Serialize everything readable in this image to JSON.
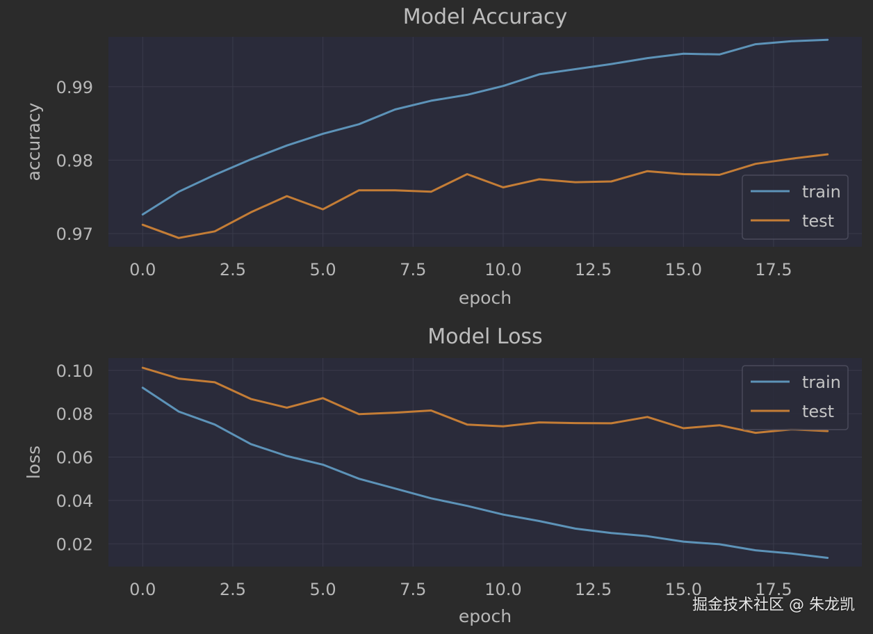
{
  "colors": {
    "background": "#2b2b2b",
    "plot_area": "#2a2b3a",
    "grid": "#3a3b4b",
    "train": "#5d93b8",
    "test": "#c47d36",
    "text": "#b8b8b8"
  },
  "watermark": "掘金技术社区 @ 朱龙凯",
  "chart_data": [
    {
      "type": "line",
      "title": "Model Accuracy",
      "xlabel": "epoch",
      "ylabel": "accuracy",
      "xlim": [
        -0.95,
        19.95
      ],
      "ylim": [
        0.9682,
        0.9968
      ],
      "xticks": [
        0.0,
        2.5,
        5.0,
        7.5,
        10.0,
        12.5,
        15.0,
        17.5
      ],
      "xtick_labels": [
        "0.0",
        "2.5",
        "5.0",
        "7.5",
        "10.0",
        "12.5",
        "15.0",
        "17.5"
      ],
      "yticks": [
        0.97,
        0.98,
        0.99
      ],
      "ytick_labels": [
        "0.97",
        "0.98",
        "0.99"
      ],
      "grid": true,
      "legend_position": "lower-right",
      "x": [
        0,
        1,
        2,
        3,
        4,
        5,
        6,
        7,
        8,
        9,
        10,
        11,
        12,
        13,
        14,
        15,
        16,
        17,
        18,
        19
      ],
      "series": [
        {
          "name": "train",
          "color_key": "train",
          "values": [
            0.9726,
            0.9757,
            0.978,
            0.9801,
            0.982,
            0.9836,
            0.9849,
            0.9869,
            0.9881,
            0.9889,
            0.9901,
            0.9917,
            0.9924,
            0.9931,
            0.9939,
            0.9945,
            0.9944,
            0.9958,
            0.9962,
            0.9964
          ]
        },
        {
          "name": "test",
          "color_key": "test",
          "values": [
            0.9712,
            0.9694,
            0.9703,
            0.9729,
            0.9751,
            0.9733,
            0.9759,
            0.9759,
            0.9757,
            0.9781,
            0.9763,
            0.9774,
            0.977,
            0.9771,
            0.9785,
            0.9781,
            0.978,
            0.9795,
            0.9802,
            0.9808
          ]
        }
      ]
    },
    {
      "type": "line",
      "title": "Model Loss",
      "xlabel": "epoch",
      "ylabel": "loss",
      "xlim": [
        -0.95,
        19.95
      ],
      "ylim": [
        0.0095,
        0.1057
      ],
      "xticks": [
        0.0,
        2.5,
        5.0,
        7.5,
        10.0,
        12.5,
        15.0,
        17.5
      ],
      "xtick_labels": [
        "0.0",
        "2.5",
        "5.0",
        "7.5",
        "10.0",
        "12.5",
        "15.0",
        "17.5"
      ],
      "yticks": [
        0.02,
        0.04,
        0.06,
        0.08,
        0.1
      ],
      "ytick_labels": [
        "0.02",
        "0.04",
        "0.06",
        "0.08",
        "0.10"
      ],
      "grid": true,
      "legend_position": "upper-right",
      "x": [
        0,
        1,
        2,
        3,
        4,
        5,
        6,
        7,
        8,
        9,
        10,
        11,
        12,
        13,
        14,
        15,
        16,
        17,
        18,
        19
      ],
      "series": [
        {
          "name": "train",
          "color_key": "train",
          "values": [
            0.092,
            0.081,
            0.075,
            0.066,
            0.0605,
            0.0565,
            0.05,
            0.0455,
            0.041,
            0.0375,
            0.0335,
            0.0305,
            0.027,
            0.025,
            0.0235,
            0.021,
            0.0198,
            0.017,
            0.0155,
            0.0135
          ]
        },
        {
          "name": "test",
          "color_key": "test",
          "values": [
            0.1012,
            0.0962,
            0.0945,
            0.0868,
            0.0828,
            0.0872,
            0.0798,
            0.0805,
            0.0815,
            0.075,
            0.0742,
            0.076,
            0.0757,
            0.0756,
            0.0785,
            0.0733,
            0.0747,
            0.0712,
            0.0728,
            0.072
          ]
        }
      ]
    }
  ]
}
